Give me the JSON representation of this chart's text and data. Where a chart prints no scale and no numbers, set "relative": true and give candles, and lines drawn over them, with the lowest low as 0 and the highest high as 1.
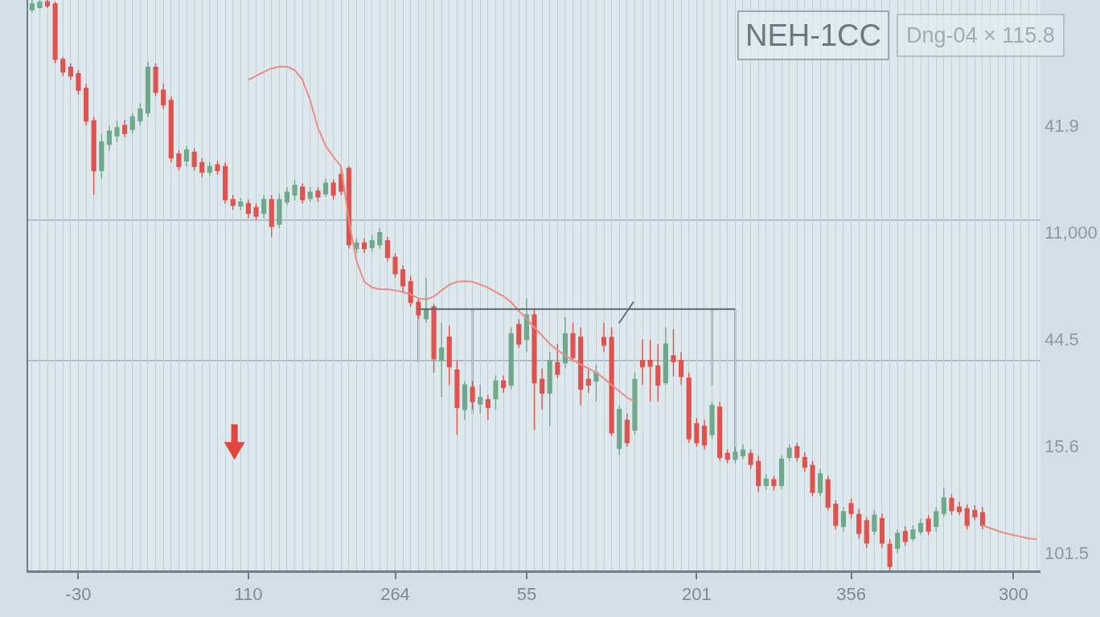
{
  "chart_data": {
    "type": "candlestick",
    "title": "NEH-1CC",
    "subtitle": "Dng-04 × 115.8",
    "relative": true,
    "categories": [
      null,
      null,
      null,
      null,
      null,
      null,
      "-30",
      null,
      null,
      null,
      null,
      null,
      null,
      null,
      null,
      null,
      null,
      null,
      null,
      null,
      null,
      null,
      null,
      null,
      null,
      null,
      null,
      null,
      "110",
      null,
      null,
      null,
      null,
      null,
      null,
      null,
      null,
      null,
      null,
      null,
      null,
      null,
      null,
      null,
      null,
      null,
      null,
      "264",
      null,
      null,
      null,
      null,
      null,
      null,
      null,
      null,
      null,
      null,
      null,
      null,
      null,
      null,
      null,
      null,
      "55",
      null,
      null,
      null,
      null,
      null,
      null,
      null,
      null,
      null,
      null,
      null,
      null,
      null,
      null,
      null,
      null,
      null,
      null,
      null,
      null,
      null,
      "201",
      null,
      null,
      null,
      null,
      null,
      null,
      null,
      null,
      null,
      null,
      null,
      null,
      null,
      null,
      null,
      null,
      null,
      null,
      null,
      "356",
      null,
      null,
      null,
      null,
      null,
      null,
      null,
      null,
      null,
      null,
      null,
      null,
      null,
      null,
      null,
      null,
      null,
      null,
      null,
      null,
      "300",
      null,
      null,
      null
    ],
    "ohlc": [
      [
        0.983,
        1.0,
        0.978,
        0.993
      ],
      [
        0.987,
        1.0,
        0.984,
        0.996
      ],
      [
        0.997,
        1.0,
        0.986,
        0.99
      ],
      [
        0.993,
        0.997,
        0.889,
        0.896
      ],
      [
        0.896,
        0.9,
        0.867,
        0.874
      ],
      [
        0.882,
        0.889,
        0.86,
        0.867
      ],
      [
        0.871,
        0.877,
        0.834,
        0.842
      ],
      [
        0.845,
        0.853,
        0.78,
        0.788
      ],
      [
        0.788,
        0.795,
        0.658,
        0.701
      ],
      [
        0.701,
        0.766,
        0.686,
        0.751
      ],
      [
        0.747,
        0.78,
        0.737,
        0.77
      ],
      [
        0.762,
        0.788,
        0.751,
        0.776
      ],
      [
        0.78,
        0.79,
        0.759,
        0.766
      ],
      [
        0.773,
        0.802,
        0.766,
        0.795
      ],
      [
        0.788,
        0.819,
        0.78,
        0.809
      ],
      [
        0.802,
        0.892,
        0.795,
        0.882
      ],
      [
        0.882,
        0.889,
        0.831,
        0.838
      ],
      [
        0.842,
        0.853,
        0.809,
        0.816
      ],
      [
        0.824,
        0.831,
        0.715,
        0.723
      ],
      [
        0.73,
        0.737,
        0.701,
        0.708
      ],
      [
        0.718,
        0.744,
        0.708,
        0.737
      ],
      [
        0.733,
        0.74,
        0.701,
        0.708
      ],
      [
        0.715,
        0.723,
        0.689,
        0.698
      ],
      [
        0.698,
        0.715,
        0.692,
        0.708
      ],
      [
        0.711,
        0.718,
        0.694,
        0.701
      ],
      [
        0.708,
        0.715,
        0.643,
        0.65
      ],
      [
        0.65,
        0.658,
        0.632,
        0.64
      ],
      [
        0.639,
        0.653,
        0.632,
        0.646
      ],
      [
        0.643,
        0.65,
        0.617,
        0.626
      ],
      [
        0.636,
        0.643,
        0.614,
        0.621
      ],
      [
        0.626,
        0.658,
        0.617,
        0.65
      ],
      [
        0.65,
        0.658,
        0.585,
        0.603
      ],
      [
        0.607,
        0.66,
        0.6,
        0.65
      ],
      [
        0.646,
        0.672,
        0.64,
        0.663
      ],
      [
        0.658,
        0.684,
        0.649,
        0.675
      ],
      [
        0.672,
        0.679,
        0.643,
        0.65
      ],
      [
        0.652,
        0.672,
        0.646,
        0.663
      ],
      [
        0.665,
        0.672,
        0.646,
        0.655
      ],
      [
        0.66,
        0.686,
        0.655,
        0.679
      ],
      [
        0.679,
        0.686,
        0.65,
        0.658
      ],
      [
        0.694,
        0.708,
        0.658,
        0.665
      ],
      [
        0.705,
        0.708,
        0.564,
        0.571
      ],
      [
        0.564,
        0.582,
        0.556,
        0.574
      ],
      [
        0.574,
        0.582,
        0.556,
        0.564
      ],
      [
        0.566,
        0.588,
        0.559,
        0.578
      ],
      [
        0.571,
        0.6,
        0.564,
        0.592
      ],
      [
        0.578,
        0.585,
        0.542,
        0.549
      ],
      [
        0.549,
        0.556,
        0.513,
        0.52
      ],
      [
        0.527,
        0.535,
        0.487,
        0.499
      ],
      [
        0.506,
        0.516,
        0.462,
        0.47
      ],
      [
        0.47,
        0.477,
        0.441,
        0.448
      ],
      [
        0.441,
        0.513,
        0.434,
        0.458
      ],
      [
        0.462,
        0.467,
        0.347,
        0.371
      ],
      [
        0.368,
        0.434,
        0.303,
        0.39
      ],
      [
        0.409,
        0.429,
        0.325,
        0.357
      ],
      [
        0.351,
        0.368,
        0.238,
        0.286
      ],
      [
        0.282,
        0.332,
        0.264,
        0.325
      ],
      [
        0.321,
        0.332,
        0.282,
        0.296
      ],
      [
        0.292,
        0.325,
        0.275,
        0.303
      ],
      [
        0.299,
        0.308,
        0.264,
        0.286
      ],
      [
        0.301,
        0.342,
        0.282,
        0.332
      ],
      [
        0.332,
        0.342,
        0.311,
        0.321
      ],
      [
        0.325,
        0.426,
        0.318,
        0.415
      ],
      [
        0.431,
        0.441,
        0.39,
        0.397
      ],
      [
        0.405,
        0.477,
        0.383,
        0.448
      ],
      [
        0.448,
        0.458,
        0.246,
        0.329
      ],
      [
        0.335,
        0.354,
        0.282,
        0.311
      ],
      [
        0.311,
        0.383,
        0.253,
        0.368
      ],
      [
        0.364,
        0.397,
        0.337,
        0.344
      ],
      [
        0.364,
        0.444,
        0.354,
        0.415
      ],
      [
        0.415,
        0.434,
        0.366,
        0.373
      ],
      [
        0.409,
        0.426,
        0.289,
        0.318
      ],
      [
        0.335,
        0.354,
        0.311,
        0.325
      ],
      [
        0.332,
        0.361,
        0.296,
        0.347
      ],
      [
        0.408,
        0.434,
        0.383,
        0.395
      ],
      [
        0.408,
        0.426,
        0.236,
        0.241
      ],
      [
        0.214,
        0.289,
        0.202,
        0.282
      ],
      [
        0.263,
        0.275,
        0.217,
        0.224
      ],
      [
        0.246,
        0.347,
        0.238,
        0.335
      ],
      [
        0.368,
        0.405,
        0.325,
        0.357
      ],
      [
        0.368,
        0.405,
        0.296,
        0.358
      ],
      [
        0.358,
        0.397,
        0.296,
        0.325
      ],
      [
        0.329,
        0.426,
        0.325,
        0.397
      ],
      [
        0.376,
        0.423,
        0.34,
        0.366
      ],
      [
        0.368,
        0.383,
        0.325,
        0.34
      ],
      [
        0.337,
        0.347,
        0.224,
        0.231
      ],
      [
        0.257,
        0.267,
        0.217,
        0.224
      ],
      [
        0.253,
        0.264,
        0.212,
        0.22
      ],
      [
        0.238,
        0.296,
        0.231,
        0.289
      ],
      [
        0.286,
        0.296,
        0.192,
        0.198
      ],
      [
        0.205,
        0.212,
        0.188,
        0.195
      ],
      [
        0.195,
        0.217,
        0.188,
        0.207
      ],
      [
        0.201,
        0.221,
        0.195,
        0.211
      ],
      [
        0.205,
        0.212,
        0.178,
        0.186
      ],
      [
        0.191,
        0.201,
        0.137,
        0.149
      ],
      [
        0.149,
        0.169,
        0.142,
        0.16
      ],
      [
        0.159,
        0.166,
        0.14,
        0.149
      ],
      [
        0.149,
        0.202,
        0.142,
        0.195
      ],
      [
        0.198,
        0.221,
        0.192,
        0.214
      ],
      [
        0.217,
        0.224,
        0.191,
        0.198
      ],
      [
        0.198,
        0.207,
        0.173,
        0.181
      ],
      [
        0.184,
        0.192,
        0.13,
        0.137
      ],
      [
        0.137,
        0.178,
        0.13,
        0.169
      ],
      [
        0.159,
        0.166,
        0.105,
        0.111
      ],
      [
        0.116,
        0.123,
        0.072,
        0.079
      ],
      [
        0.077,
        0.111,
        0.068,
        0.103
      ],
      [
        0.117,
        0.126,
        0.091,
        0.1
      ],
      [
        0.098,
        0.108,
        0.056,
        0.065
      ],
      [
        0.087,
        0.094,
        0.039,
        0.048
      ],
      [
        0.069,
        0.105,
        0.062,
        0.097
      ],
      [
        0.091,
        0.1,
        0.039,
        0.048
      ],
      [
        0.046,
        0.055,
        0.0,
        0.007
      ],
      [
        0.039,
        0.072,
        0.03,
        0.065
      ],
      [
        0.068,
        0.077,
        0.043,
        0.051
      ],
      [
        0.056,
        0.079,
        0.051,
        0.071
      ],
      [
        0.068,
        0.091,
        0.062,
        0.082
      ],
      [
        0.09,
        0.097,
        0.062,
        0.069
      ],
      [
        0.077,
        0.111,
        0.068,
        0.103
      ],
      [
        0.1,
        0.145,
        0.094,
        0.127
      ],
      [
        0.126,
        0.134,
        0.097,
        0.105
      ],
      [
        0.111,
        0.12,
        0.097,
        0.103
      ],
      [
        0.108,
        0.116,
        0.072,
        0.079
      ],
      [
        0.105,
        0.114,
        0.088,
        0.094
      ],
      [
        0.101,
        0.111,
        0.072,
        0.079
      ],
      null,
      null,
      null,
      null,
      null,
      null,
      null
    ],
    "colors": [
      "#6fa98b",
      "#6fa98b",
      "#e0524e",
      "#e0524e",
      "#e0524e",
      "#e0524e",
      "#e0524e",
      "#e0524e",
      "#e0524e",
      "#6fa98b",
      "#6fa98b",
      "#6fa98b",
      "#e0524e",
      "#6fa98b",
      "#6fa98b",
      "#6fa98b",
      "#e0524e",
      "#e0524e",
      "#e0524e",
      "#e0524e",
      "#6fa98b",
      "#e0524e",
      "#e0524e",
      "#6fa98b",
      "#e0524e",
      "#e0524e",
      "#e0524e",
      "#6fa98b",
      "#e0524e",
      "#e0524e",
      "#6fa98b",
      "#e0524e",
      "#6fa98b",
      "#6fa98b",
      "#6fa98b",
      "#e0524e",
      "#6fa98b",
      "#e0524e",
      "#6fa98b",
      "#e0524e",
      "#e0524e",
      "#e0524e",
      "#6fa98b",
      "#e0524e",
      "#6fa98b",
      "#6fa98b",
      "#e0524e",
      "#e0524e",
      "#e0524e",
      "#e0524e",
      "#e0524e",
      "#6fa98b",
      "#e0524e",
      "#6fa98b",
      "#e0524e",
      "#e0524e",
      "#6fa98b",
      "#e0524e",
      "#6fa98b",
      "#e0524e",
      "#6fa98b",
      "#e0524e",
      "#6fa98b",
      "#e0524e",
      "#6fa98b",
      "#e0524e",
      "#e0524e",
      "#6fa98b",
      "#e0524e",
      "#6fa98b",
      "#e0524e",
      "#e0524e",
      "#e0524e",
      "#6fa98b",
      "#e0524e",
      "#e0524e",
      "#6fa98b",
      "#e0524e",
      "#6fa98b",
      "#e0524e",
      "#e0524e",
      "#e0524e",
      "#6fa98b",
      "#e0524e",
      "#e0524e",
      "#e0524e",
      "#e0524e",
      "#e0524e",
      "#6fa98b",
      "#e0524e",
      "#e0524e",
      "#6fa98b",
      "#6fa98b",
      "#e0524e",
      "#e0524e",
      "#6fa98b",
      "#e0524e",
      "#6fa98b",
      "#6fa98b",
      "#e0524e",
      "#e0524e",
      "#e0524e",
      "#6fa98b",
      "#e0524e",
      "#e0524e",
      "#6fa98b",
      "#e0524e",
      "#e0524e",
      "#e0524e",
      "#6fa98b",
      "#e0524e",
      "#e0524e",
      "#6fa98b",
      "#e0524e",
      "#6fa98b",
      "#6fa98b",
      "#e0524e",
      "#6fa98b",
      "#6fa98b",
      "#e0524e",
      "#e0524e",
      "#e0524e",
      "#e0524e",
      "#e0524e",
      null,
      null,
      null,
      null,
      null,
      null,
      null
    ],
    "series": [
      {
        "type": "line",
        "color": "#ee8c84",
        "values": [
          null,
          null,
          null,
          null,
          null,
          null,
          null,
          null,
          null,
          null,
          null,
          null,
          null,
          null,
          null,
          null,
          null,
          null,
          null,
          null,
          null,
          null,
          null,
          null,
          null,
          null,
          null,
          null,
          0.86,
          0.867,
          0.874,
          0.88,
          0.883,
          0.883,
          0.877,
          0.86,
          0.824,
          0.776,
          0.744,
          0.725,
          0.708,
          0.614,
          0.542,
          0.506,
          0.496,
          0.493,
          0.493,
          0.491,
          0.488,
          0.484,
          0.477,
          0.475,
          0.48,
          0.491,
          0.501,
          0.506,
          0.507,
          0.506,
          0.501,
          0.496,
          0.488,
          0.481,
          0.47,
          0.455,
          0.441,
          0.426,
          0.412,
          0.397,
          0.386,
          0.377,
          0.368,
          0.361,
          0.354,
          0.347,
          0.337,
          0.325,
          0.314,
          0.303,
          0.296,
          null,
          null,
          null,
          null,
          null,
          null,
          null,
          null,
          null,
          null,
          null,
          null,
          null,
          null,
          null,
          null,
          null,
          null,
          null,
          null,
          null,
          null,
          null,
          null,
          null,
          null,
          null,
          null,
          null,
          null,
          null,
          null,
          null,
          null,
          null,
          null,
          null,
          null,
          null,
          null,
          null,
          null,
          null,
          null,
          0.079,
          0.074,
          0.069,
          0.065,
          0.062,
          0.059,
          0.056,
          0.055
        ]
      },
      {
        "type": "line",
        "color": "#5d676c",
        "values": [
          null,
          null,
          null,
          null,
          null,
          null,
          null,
          null,
          null,
          null,
          null,
          null,
          null,
          null,
          null,
          null,
          null,
          null,
          null,
          null,
          null,
          null,
          null,
          null,
          null,
          null,
          null,
          null,
          null,
          null,
          null,
          null,
          null,
          null,
          null,
          null,
          null,
          null,
          null,
          null,
          null,
          null,
          null,
          null,
          null,
          null,
          null,
          null,
          null,
          null,
          0.458,
          0.458,
          0.458,
          0.458,
          0.458,
          0.458,
          0.458,
          0.458,
          0.458,
          0.458,
          0.458,
          0.458,
          0.458,
          0.458,
          0.458,
          0.458,
          0.458,
          0.458,
          0.458,
          0.458,
          0.458,
          0.458,
          0.458,
          0.458,
          0.458,
          0.458,
          0.458,
          0.458,
          0.458,
          0.458,
          0.458,
          0.458,
          0.458,
          0.458,
          0.458,
          0.458,
          0.458,
          0.458,
          0.458,
          0.458,
          0.458,
          0.458,
          null,
          null,
          null,
          null,
          null,
          null,
          null,
          null,
          null,
          null,
          null,
          null,
          null,
          null,
          null,
          null,
          null,
          null,
          null,
          null,
          null,
          null,
          null,
          null,
          null,
          null,
          null,
          null,
          null,
          null,
          null,
          null,
          null,
          null,
          null,
          null,
          null,
          null,
          null
        ]
      }
    ],
    "ref_lines": [
      {
        "axis": "y",
        "value": 0.614,
        "color": "#9fb0b7"
      },
      {
        "axis": "y",
        "value": 0.368,
        "color": "#9fb0b7"
      }
    ],
    "annotations": [
      "41.9",
      "11,000",
      "44.5",
      "15.6",
      "101.5"
    ],
    "grid": "x"
  }
}
